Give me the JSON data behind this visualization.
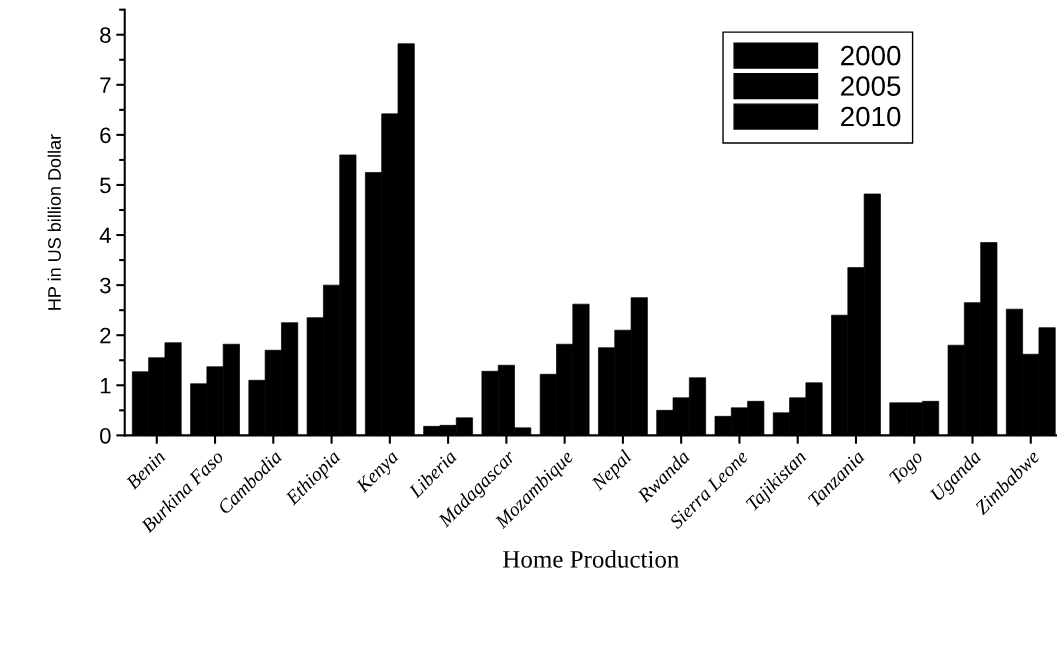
{
  "chart_data": {
    "type": "bar",
    "xlabel": "Home Production",
    "ylabel": "HP in US billion Dollar",
    "categories": [
      "Benin",
      "Burkina Faso",
      "Cambodia",
      "Ethiopia",
      "Kenya",
      "Liberia",
      "Madagascar",
      "Mozambique",
      "Nepal",
      "Rwanda",
      "Sierra Leone",
      "Tajikistan",
      "Tanzania",
      "Togo",
      "Uganda",
      "Zimbabwe"
    ],
    "series": [
      {
        "name": "2000",
        "color": "#000000",
        "values": [
          1.27,
          1.03,
          1.1,
          2.35,
          5.25,
          0.18,
          1.28,
          1.22,
          1.75,
          0.5,
          0.38,
          0.45,
          2.4,
          0.65,
          1.8,
          2.52
        ]
      },
      {
        "name": "2005",
        "color": "#000000",
        "values": [
          1.55,
          1.37,
          1.7,
          3.0,
          6.42,
          0.2,
          1.4,
          1.82,
          2.1,
          0.75,
          0.55,
          0.75,
          3.35,
          0.65,
          2.65,
          1.62
        ]
      },
      {
        "name": "2010",
        "color": "#000000",
        "values": [
          1.85,
          1.82,
          2.25,
          5.6,
          7.82,
          0.35,
          0.15,
          2.62,
          2.75,
          1.15,
          0.68,
          1.05,
          4.82,
          0.68,
          3.85,
          2.15
        ]
      }
    ],
    "ylim": [
      0,
      8.5
    ],
    "yticks": [
      0,
      1,
      2,
      3,
      4,
      5,
      6,
      7,
      8
    ],
    "grid": false,
    "legend": "top right"
  }
}
